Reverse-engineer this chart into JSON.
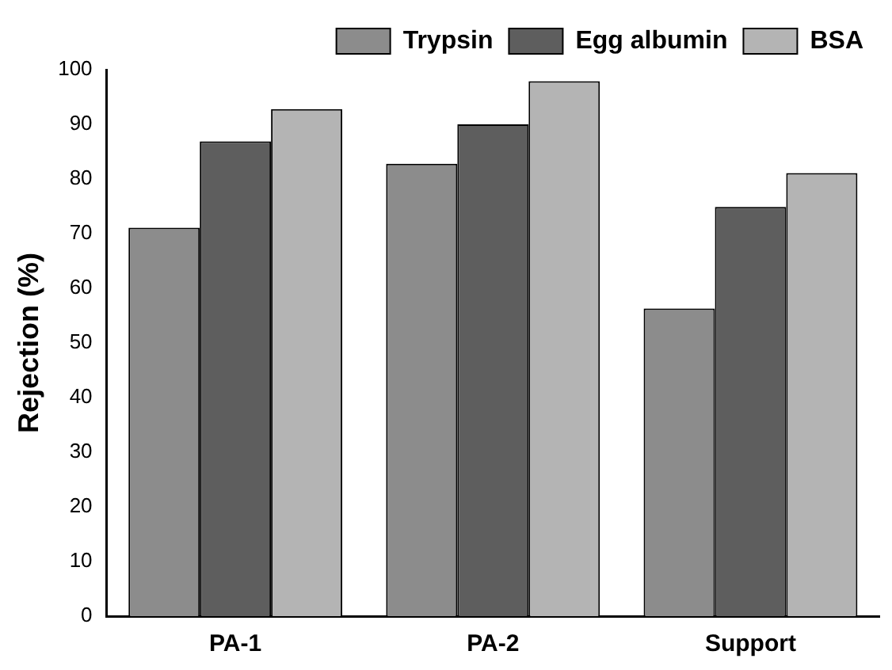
{
  "chart_data": {
    "type": "bar",
    "ylabel": "Rejection (%)",
    "categories": [
      "PA-1",
      "PA-2",
      "Support"
    ],
    "series": [
      {
        "name": "Trypsin",
        "color": "#8c8c8c",
        "values": [
          71.1,
          82.8,
          56.3
        ]
      },
      {
        "name": "Egg albumin",
        "color": "#5e5e5e",
        "values": [
          86.9,
          90.0,
          74.9
        ]
      },
      {
        "name": "BSA",
        "color": "#b4b4b4",
        "values": [
          92.8,
          97.9,
          81.1
        ]
      }
    ],
    "ylim": [
      0,
      100
    ],
    "yticks": [
      0,
      10,
      20,
      30,
      40,
      50,
      60,
      70,
      80,
      90,
      100
    ],
    "grid": false,
    "legend": "top right"
  }
}
